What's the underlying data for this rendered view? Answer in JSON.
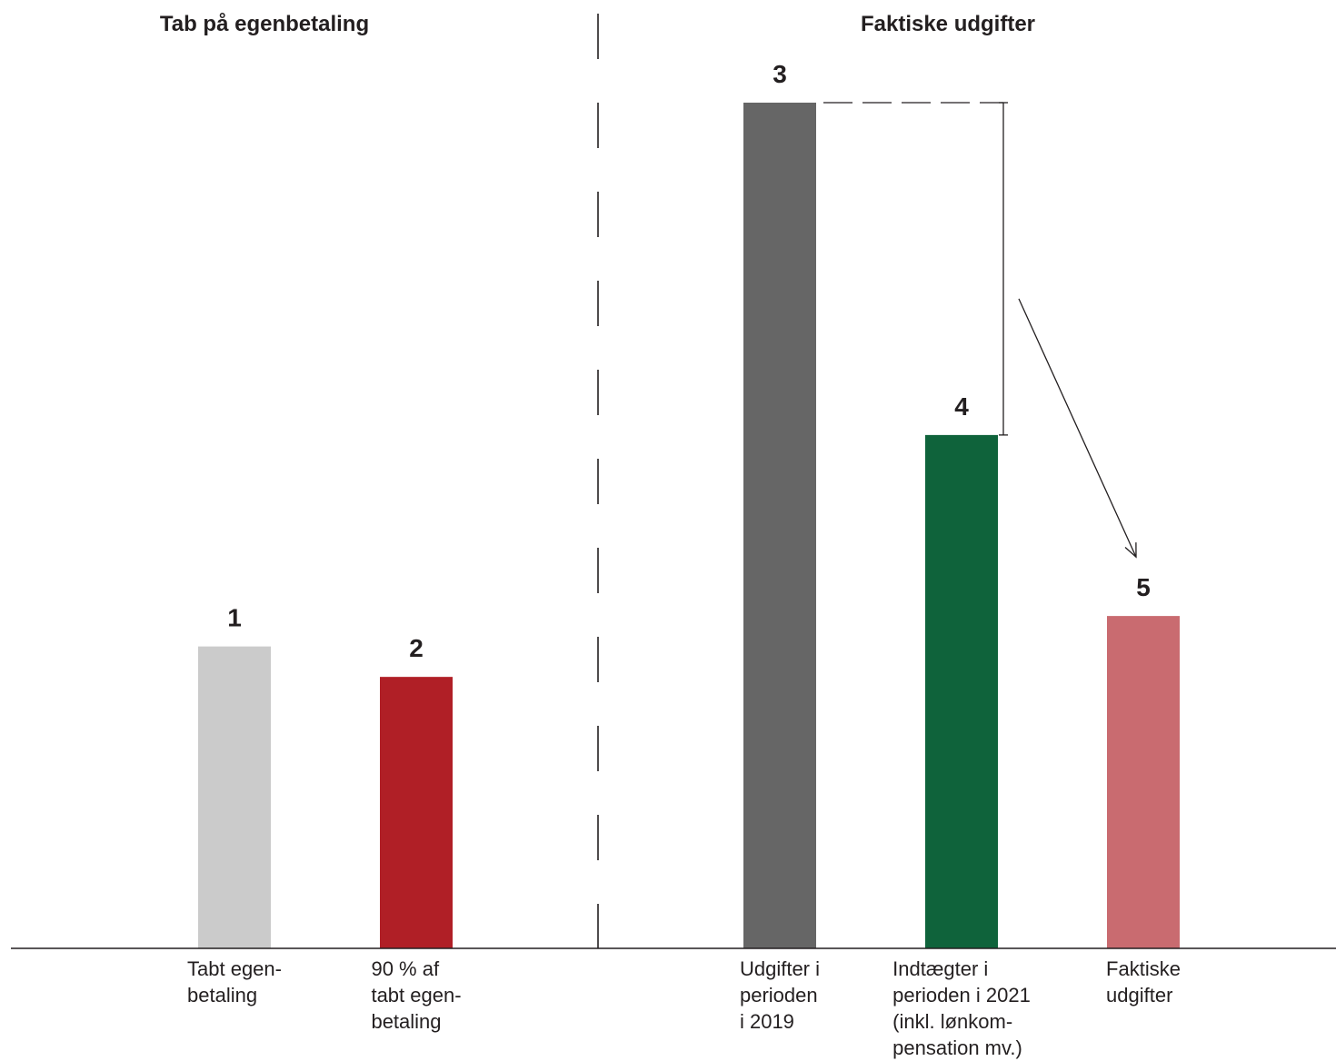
{
  "chart_data": {
    "type": "bar",
    "ylim": [
      0,
      100
    ],
    "grid": false,
    "panels": [
      {
        "title": "Tab på egenbetaling",
        "bars": [
          {
            "marker": "1",
            "label_lines": [
              "Tabt egen-",
              "betaling"
            ],
            "value": 35.7,
            "color": "#cbcbcb"
          },
          {
            "marker": "2",
            "label_lines": [
              "90 % af",
              "tabt egen-",
              "betaling"
            ],
            "value": 32.1,
            "color": "#b01f26"
          }
        ]
      },
      {
        "title": "Faktiske udgifter",
        "bars": [
          {
            "marker": "3",
            "label_lines": [
              "Udgifter i",
              "perioden",
              "i 2019"
            ],
            "value": 100,
            "color": "#666666"
          },
          {
            "marker": "4",
            "label_lines": [
              "Indtægter i",
              "perioden i 2021",
              "(inkl. lønkom-",
              "pensation mv.)"
            ],
            "value": 60.7,
            "color": "#0f633b"
          },
          {
            "marker": "5",
            "label_lines": [
              "Faktiske",
              "udgifter"
            ],
            "value": 39.3,
            "color": "#c96b70"
          }
        ]
      }
    ]
  }
}
